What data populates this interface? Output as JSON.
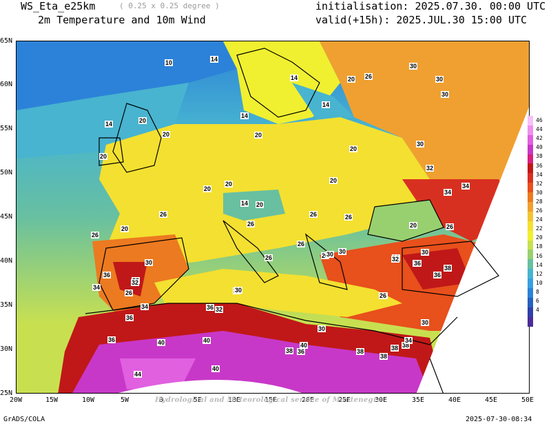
{
  "header": {
    "model": "WS_Eta_e25km",
    "resolution": "( 0.25 x 0.25 degree )",
    "product": "2m Temperature and 10m Wind",
    "init": "initialisation: 2025.07.30. 00:00 UTC",
    "valid": "valid(+15h): 2025.JUL.30 15:00 UTC"
  },
  "axes": {
    "lat_labels": [
      "65N",
      "60N",
      "55N",
      "50N",
      "45N",
      "40N",
      "35N",
      "30N",
      "25N"
    ],
    "lon_labels": [
      "20W",
      "15W",
      "10W",
      "5W",
      "0",
      "5E",
      "10E",
      "15E",
      "20E",
      "25E",
      "30E",
      "35E",
      "40E",
      "45E",
      "50E"
    ]
  },
  "colorbar": {
    "labels": [
      "46",
      "44",
      "42",
      "40",
      "38",
      "36",
      "34",
      "32",
      "30",
      "28",
      "26",
      "24",
      "22",
      "20",
      "18",
      "16",
      "14",
      "12",
      "10",
      "8",
      "6",
      "4"
    ],
    "colors": [
      "#f8c0f8",
      "#ee90ee",
      "#e060e0",
      "#c838c8",
      "#d82080",
      "#c01818",
      "#d83020",
      "#e8501c",
      "#ec7a20",
      "#f0a030",
      "#f4c430",
      "#f4e030",
      "#f0f030",
      "#c8e050",
      "#98d070",
      "#68c0a0",
      "#48b4d0",
      "#38a0e0",
      "#2c82d8",
      "#2860c0",
      "#3040a8",
      "#4a2c98"
    ]
  },
  "contour_labels": [
    "10",
    "14",
    "14",
    "14",
    "14",
    "20",
    "20",
    "20",
    "20",
    "14",
    "20",
    "20",
    "20",
    "20",
    "20",
    "14",
    "20",
    "26",
    "26",
    "26",
    "26",
    "26",
    "26",
    "26",
    "26",
    "26",
    "26",
    "30",
    "30",
    "30",
    "30",
    "30",
    "30",
    "30",
    "32",
    "32",
    "32",
    "32",
    "34",
    "34",
    "34",
    "36",
    "36",
    "36",
    "36",
    "36",
    "36",
    "36",
    "38",
    "38",
    "38",
    "38",
    "38",
    "38",
    "40",
    "40",
    "40",
    "40",
    "44",
    "30",
    "30",
    "30",
    "34",
    "32",
    "26",
    "20",
    "20",
    "26",
    "30",
    "32",
    "34",
    "36",
    "30",
    "26"
  ],
  "watermark": "Hydrological and Meteorological service of Montenegro",
  "footer": {
    "left": "GrADS/COLA",
    "right": "2025-07-30-08:34"
  }
}
